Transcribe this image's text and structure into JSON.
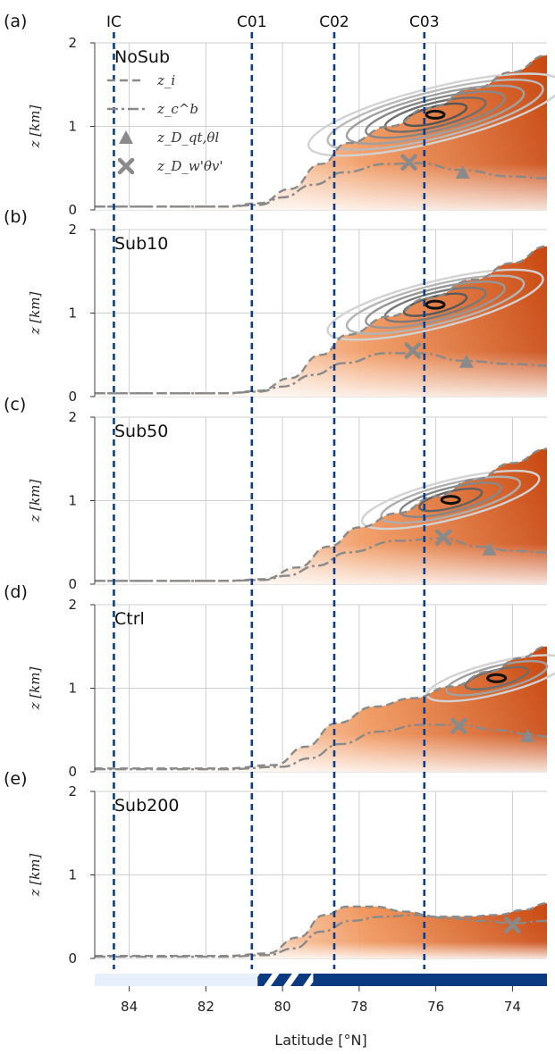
{
  "chart_data": {
    "type": "line",
    "xlabel": "Latitude [°N]",
    "ylabel": "z [km]",
    "xlim": [
      84.9,
      73.1
    ],
    "ylim": [
      0,
      2
    ],
    "x_ticks": [
      84,
      82,
      80,
      78,
      76,
      74
    ],
    "y_ticks": [
      0,
      1,
      2
    ],
    "grid": true,
    "cross_sections": [
      {
        "label": "IC",
        "lat": 84.4
      },
      {
        "label": "C01",
        "lat": 80.8
      },
      {
        "label": "C02",
        "lat": 78.65
      },
      {
        "label": "C03",
        "lat": 76.3
      }
    ],
    "legend": {
      "placement": "upper-left of panel (a)",
      "entries": [
        {
          "name": "z_i",
          "style": "dashed",
          "color": "#8a8a8a"
        },
        {
          "name": "z_c^b",
          "style": "dash-dot",
          "color": "#8a8a8a"
        },
        {
          "name": "z_D_qt,θl",
          "style": "triangle-marker",
          "color": "#8a8a8a"
        },
        {
          "name": "z_D_w'θv'",
          "style": "x-marker",
          "color": "#8a8a8a"
        }
      ]
    },
    "panels": [
      {
        "tag": "(a)",
        "title": "NoSub",
        "zi": [
          [
            84.9,
            0.04
          ],
          [
            81.5,
            0.04
          ],
          [
            80.6,
            0.08
          ],
          [
            79.8,
            0.25
          ],
          [
            79.0,
            0.55
          ],
          [
            78.3,
            0.8
          ],
          [
            77.2,
            1.0
          ],
          [
            76.2,
            1.22
          ],
          [
            75.0,
            1.45
          ],
          [
            74.0,
            1.65
          ],
          [
            73.1,
            1.85
          ]
        ],
        "zcb": [
          [
            84.9,
            0.04
          ],
          [
            81.5,
            0.04
          ],
          [
            80.6,
            0.06
          ],
          [
            80.0,
            0.15
          ],
          [
            79.2,
            0.3
          ],
          [
            78.4,
            0.45
          ],
          [
            77.3,
            0.55
          ],
          [
            76.4,
            0.56
          ],
          [
            75.4,
            0.48
          ],
          [
            74.0,
            0.4
          ],
          [
            73.1,
            0.38
          ]
        ],
        "triangle": [
          75.3,
          0.45
        ],
        "cross": [
          76.7,
          0.57
        ]
      },
      {
        "tag": "(b)",
        "title": "Sub10",
        "zi": [
          [
            84.9,
            0.04
          ],
          [
            81.5,
            0.04
          ],
          [
            80.6,
            0.07
          ],
          [
            79.8,
            0.22
          ],
          [
            79.0,
            0.5
          ],
          [
            78.3,
            0.74
          ],
          [
            77.2,
            0.96
          ],
          [
            76.2,
            1.18
          ],
          [
            75.0,
            1.4
          ],
          [
            74.0,
            1.6
          ],
          [
            73.1,
            1.8
          ]
        ],
        "zcb": [
          [
            84.9,
            0.04
          ],
          [
            81.5,
            0.04
          ],
          [
            80.6,
            0.06
          ],
          [
            80.0,
            0.12
          ],
          [
            79.2,
            0.26
          ],
          [
            78.4,
            0.4
          ],
          [
            77.3,
            0.52
          ],
          [
            76.4,
            0.52
          ],
          [
            75.3,
            0.43
          ],
          [
            74.0,
            0.39
          ],
          [
            73.1,
            0.37
          ]
        ],
        "triangle": [
          75.2,
          0.42
        ],
        "cross": [
          76.6,
          0.55
        ]
      },
      {
        "tag": "(c)",
        "title": "Sub50",
        "zi": [
          [
            84.9,
            0.04
          ],
          [
            81.5,
            0.04
          ],
          [
            80.5,
            0.06
          ],
          [
            79.6,
            0.2
          ],
          [
            78.8,
            0.45
          ],
          [
            78.0,
            0.68
          ],
          [
            77.0,
            0.85
          ],
          [
            76.0,
            1.05
          ],
          [
            75.0,
            1.25
          ],
          [
            74.0,
            1.45
          ],
          [
            73.1,
            1.62
          ]
        ],
        "zcb": [
          [
            84.9,
            0.04
          ],
          [
            81.5,
            0.04
          ],
          [
            80.5,
            0.05
          ],
          [
            79.9,
            0.1
          ],
          [
            79.1,
            0.22
          ],
          [
            78.3,
            0.38
          ],
          [
            77.0,
            0.52
          ],
          [
            75.8,
            0.55
          ],
          [
            74.9,
            0.45
          ],
          [
            74.0,
            0.4
          ],
          [
            73.1,
            0.38
          ]
        ],
        "triangle": [
          74.6,
          0.42
        ],
        "cross": [
          75.8,
          0.56
        ]
      },
      {
        "tag": "(d)",
        "title": "Ctrl",
        "zi": [
          [
            84.9,
            0.04
          ],
          [
            81.5,
            0.04
          ],
          [
            80.2,
            0.08
          ],
          [
            79.4,
            0.3
          ],
          [
            78.6,
            0.58
          ],
          [
            77.6,
            0.78
          ],
          [
            76.6,
            0.88
          ],
          [
            75.6,
            1.02
          ],
          [
            74.6,
            1.2
          ],
          [
            73.8,
            1.36
          ],
          [
            73.1,
            1.5
          ]
        ],
        "zcb": [
          [
            84.9,
            0.03
          ],
          [
            81.5,
            0.03
          ],
          [
            80.0,
            0.06
          ],
          [
            79.3,
            0.16
          ],
          [
            78.5,
            0.33
          ],
          [
            77.5,
            0.48
          ],
          [
            76.4,
            0.56
          ],
          [
            75.4,
            0.56
          ],
          [
            74.4,
            0.5
          ],
          [
            73.6,
            0.45
          ],
          [
            73.1,
            0.42
          ]
        ],
        "triangle": [
          73.6,
          0.43
        ],
        "cross": [
          75.4,
          0.55
        ]
      },
      {
        "tag": "(e)",
        "title": "Sub200",
        "zi": [
          [
            84.9,
            0.03
          ],
          [
            81.5,
            0.03
          ],
          [
            80.4,
            0.06
          ],
          [
            79.6,
            0.25
          ],
          [
            78.9,
            0.52
          ],
          [
            78.3,
            0.62
          ],
          [
            77.6,
            0.62
          ],
          [
            76.8,
            0.56
          ],
          [
            76.0,
            0.5
          ],
          [
            75.2,
            0.5
          ],
          [
            74.4,
            0.52
          ],
          [
            73.7,
            0.58
          ],
          [
            73.1,
            0.66
          ]
        ],
        "zcb": [
          [
            84.9,
            0.02
          ],
          [
            81.5,
            0.02
          ],
          [
            80.4,
            0.04
          ],
          [
            79.7,
            0.12
          ],
          [
            79.0,
            0.32
          ],
          [
            78.2,
            0.45
          ],
          [
            77.4,
            0.5
          ],
          [
            76.5,
            0.52
          ],
          [
            75.6,
            0.48
          ],
          [
            74.8,
            0.45
          ],
          [
            74.0,
            0.42
          ],
          [
            73.1,
            0.45
          ]
        ],
        "triangle": null,
        "cross": [
          74.0,
          0.4
        ]
      }
    ],
    "surface_bar": {
      "segments": [
        {
          "type": "sea-ice",
          "from": 84.9,
          "to": 80.65,
          "color": "#e7effa"
        },
        {
          "type": "marginal-ice (hatched)",
          "from": 80.65,
          "to": 79.2,
          "color": "#0b3a80"
        },
        {
          "type": "open-water",
          "from": 79.2,
          "to": 73.1,
          "color": "#0b3a80"
        }
      ]
    },
    "colors": {
      "section_line": "#0d3d8a",
      "boundary_line": "#8a8a8a",
      "fill_warm": "#d9581a",
      "contour_dark": "#222222"
    }
  }
}
